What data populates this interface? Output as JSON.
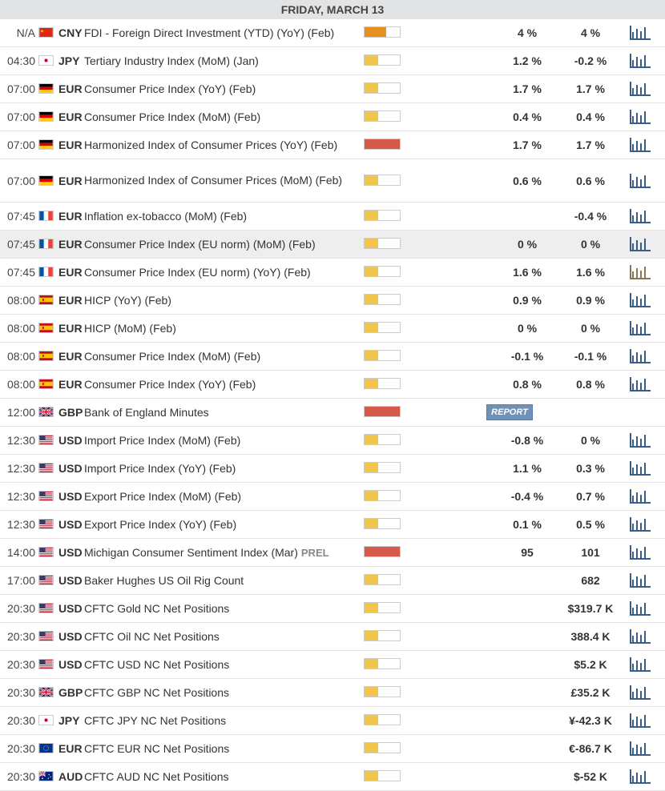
{
  "header": {
    "date": "FRIDAY, MARCH 13"
  },
  "colors": {
    "low": "#f1c54b",
    "medium": "#e8901f",
    "high": "#d55a4a",
    "chart": "#3a5d86",
    "chart_alt": "#8a7555"
  },
  "rows": [
    {
      "time": "N/A",
      "flag": "cn",
      "currency": "CNY",
      "event": "FDI - Foreign Direct Investment (YTD) (YoY) (Feb)",
      "impact": "medium",
      "actual": "4 %",
      "forecast": "4 %",
      "chart": "chart-icon"
    },
    {
      "time": "04:30",
      "flag": "jp",
      "currency": "JPY",
      "event": "Tertiary Industry Index (MoM) (Jan)",
      "impact": "low",
      "actual": "1.2 %",
      "forecast": "-0.2 %",
      "chart": "chart-icon"
    },
    {
      "time": "07:00",
      "flag": "de",
      "currency": "EUR",
      "event": "Consumer Price Index (YoY) (Feb)",
      "impact": "low",
      "actual": "1.7 %",
      "forecast": "1.7 %",
      "chart": "chart-icon"
    },
    {
      "time": "07:00",
      "flag": "de",
      "currency": "EUR",
      "event": "Consumer Price Index (MoM) (Feb)",
      "impact": "low",
      "actual": "0.4 %",
      "forecast": "0.4 %",
      "chart": "chart-icon"
    },
    {
      "time": "07:00",
      "flag": "de",
      "currency": "EUR",
      "event": "Harmonized Index of Consumer Prices (YoY) (Feb)",
      "impact": "high",
      "actual": "1.7 %",
      "forecast": "1.7 %",
      "chart": "chart-icon"
    },
    {
      "time": "07:00",
      "flag": "de",
      "currency": "EUR",
      "event": "Harmonized Index of Consumer Prices (MoM) (Feb)",
      "impact": "low",
      "actual": "0.6 %",
      "forecast": "0.6 %",
      "chart": "chart-icon",
      "tall": true
    },
    {
      "time": "07:45",
      "flag": "fr",
      "currency": "EUR",
      "event": "Inflation ex-tobacco (MoM) (Feb)",
      "impact": "low",
      "actual": "",
      "forecast": "-0.4 %",
      "chart": "chart-icon"
    },
    {
      "time": "07:45",
      "flag": "fr",
      "currency": "EUR",
      "event": "Consumer Price Index (EU norm) (MoM) (Feb)",
      "impact": "low",
      "actual": "0 %",
      "forecast": "0 %",
      "chart": "chart-icon",
      "highlight": true
    },
    {
      "time": "07:45",
      "flag": "fr",
      "currency": "EUR",
      "event": "Consumer Price Index (EU norm) (YoY) (Feb)",
      "impact": "low",
      "actual": "1.6 %",
      "forecast": "1.6 %",
      "chart": "chart-icon",
      "chart_alt": true
    },
    {
      "time": "08:00",
      "flag": "es",
      "currency": "EUR",
      "event": "HICP (YoY) (Feb)",
      "impact": "low",
      "actual": "0.9 %",
      "forecast": "0.9 %",
      "chart": "chart-icon"
    },
    {
      "time": "08:00",
      "flag": "es",
      "currency": "EUR",
      "event": "HICP (MoM) (Feb)",
      "impact": "low",
      "actual": "0 %",
      "forecast": "0 %",
      "chart": "chart-icon"
    },
    {
      "time": "08:00",
      "flag": "es",
      "currency": "EUR",
      "event": "Consumer Price Index (MoM) (Feb)",
      "impact": "low",
      "actual": "-0.1 %",
      "forecast": "-0.1 %",
      "chart": "chart-icon"
    },
    {
      "time": "08:00",
      "flag": "es",
      "currency": "EUR",
      "event": "Consumer Price Index (YoY) (Feb)",
      "impact": "low",
      "actual": "0.8 %",
      "forecast": "0.8 %",
      "chart": "chart-icon"
    },
    {
      "time": "12:00",
      "flag": "gb",
      "currency": "GBP",
      "event": "Bank of England Minutes",
      "impact": "high",
      "actual": "",
      "forecast": "",
      "report": "REPORT"
    },
    {
      "time": "12:30",
      "flag": "us",
      "currency": "USD",
      "event": "Import Price Index (MoM) (Feb)",
      "impact": "low",
      "actual": "-0.8 %",
      "forecast": "0 %",
      "chart": "chart-icon"
    },
    {
      "time": "12:30",
      "flag": "us",
      "currency": "USD",
      "event": "Import Price Index (YoY) (Feb)",
      "impact": "low",
      "actual": "1.1 %",
      "forecast": "0.3 %",
      "chart": "chart-icon"
    },
    {
      "time": "12:30",
      "flag": "us",
      "currency": "USD",
      "event": "Export Price Index (MoM) (Feb)",
      "impact": "low",
      "actual": "-0.4 %",
      "forecast": "0.7 %",
      "chart": "chart-icon"
    },
    {
      "time": "12:30",
      "flag": "us",
      "currency": "USD",
      "event": "Export Price Index (YoY) (Feb)",
      "impact": "low",
      "actual": "0.1 %",
      "forecast": "0.5 %",
      "chart": "chart-icon"
    },
    {
      "time": "14:00",
      "flag": "us",
      "currency": "USD",
      "event": "Michigan Consumer Sentiment Index (Mar)",
      "prel": "PREL",
      "impact": "high",
      "actual": "95",
      "forecast": "101",
      "chart": "chart-icon"
    },
    {
      "time": "17:00",
      "flag": "us",
      "currency": "USD",
      "event": "Baker Hughes US Oil Rig Count",
      "impact": "low",
      "actual": "",
      "forecast": "682",
      "chart": "chart-icon"
    },
    {
      "time": "20:30",
      "flag": "us",
      "currency": "USD",
      "event": "CFTC Gold NC Net Positions",
      "impact": "low",
      "actual": "",
      "forecast": "$319.7 K",
      "chart": "chart-icon"
    },
    {
      "time": "20:30",
      "flag": "us",
      "currency": "USD",
      "event": "CFTC Oil NC Net Positions",
      "impact": "low",
      "actual": "",
      "forecast": "388.4 K",
      "chart": "chart-icon"
    },
    {
      "time": "20:30",
      "flag": "us",
      "currency": "USD",
      "event": "CFTC USD NC Net Positions",
      "impact": "low",
      "actual": "",
      "forecast": "$5.2 K",
      "chart": "chart-icon"
    },
    {
      "time": "20:30",
      "flag": "gb",
      "currency": "GBP",
      "event": "CFTC GBP NC Net Positions",
      "impact": "low",
      "actual": "",
      "forecast": "£35.2 K",
      "chart": "chart-icon"
    },
    {
      "time": "20:30",
      "flag": "jp",
      "currency": "JPY",
      "event": "CFTC JPY NC Net Positions",
      "impact": "low",
      "actual": "",
      "forecast": "¥-42.3 K",
      "chart": "chart-icon"
    },
    {
      "time": "20:30",
      "flag": "eu",
      "currency": "EUR",
      "event": "CFTC EUR NC Net Positions",
      "impact": "low",
      "actual": "",
      "forecast": "€-86.7 K",
      "chart": "chart-icon"
    },
    {
      "time": "20:30",
      "flag": "au",
      "currency": "AUD",
      "event": "CFTC AUD NC Net Positions",
      "impact": "low",
      "actual": "",
      "forecast": "$-52 K",
      "chart": "chart-icon"
    }
  ]
}
